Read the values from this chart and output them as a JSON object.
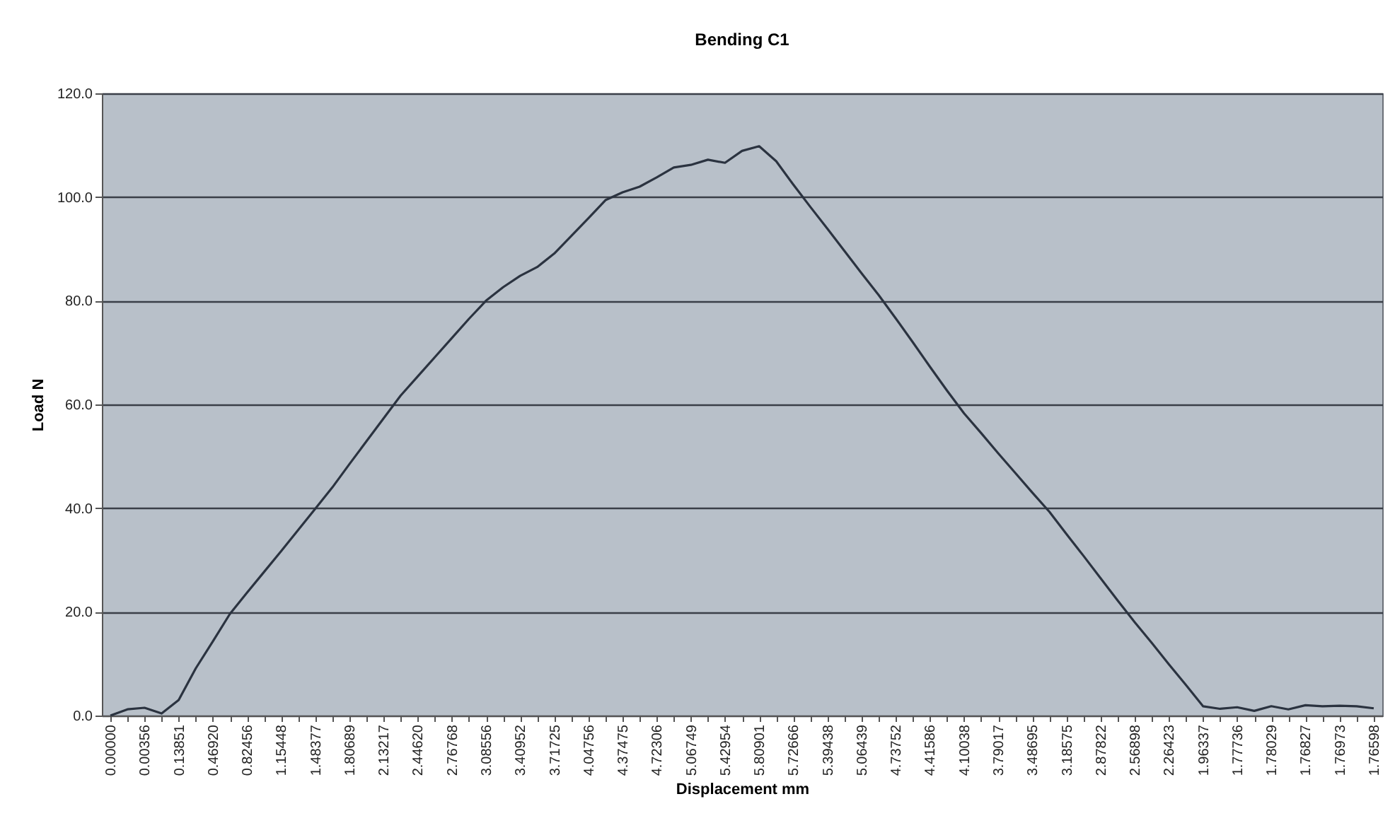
{
  "chart_data": {
    "type": "line",
    "title": "Bending C1",
    "xlabel": "Displacement mm",
    "ylabel": "Load N",
    "categories": [
      "0.00000",
      null,
      "0.00356",
      null,
      "0.13851",
      null,
      "0.46920",
      null,
      "0.82456",
      null,
      "1.15448",
      null,
      "1.48377",
      null,
      "1.80689",
      null,
      "2.13217",
      null,
      "2.44620",
      null,
      "2.76768",
      null,
      "3.08556",
      null,
      "3.40952",
      null,
      "3.71725",
      null,
      "4.04756",
      null,
      "4.37475",
      null,
      "4.72306",
      null,
      "5.06749",
      null,
      "5.42954",
      null,
      "5.80901",
      null,
      "5.72666",
      null,
      "5.39438",
      null,
      "5.06439",
      null,
      "4.73752",
      null,
      "4.41586",
      null,
      "4.10038",
      null,
      "3.79017",
      null,
      "3.48695",
      null,
      "3.18575",
      null,
      "2.87822",
      null,
      "2.56898",
      null,
      "2.26423",
      null,
      "1.96337",
      null,
      "1.77736",
      null,
      "1.78029",
      null,
      "1.76827",
      null,
      "1.76973",
      null,
      "1.76598"
    ],
    "series": [
      {
        "color": "#2b3340",
        "values": [
          0.0,
          1.2,
          1.5,
          0.4,
          3.0,
          9.1,
          14.3,
          19.6,
          23.7,
          27.7,
          31.7,
          35.8,
          39.9,
          44.0,
          48.5,
          52.9,
          57.3,
          61.7,
          65.4,
          69.1,
          72.8,
          76.5,
          80.0,
          82.6,
          84.8,
          86.5,
          89.1,
          92.5,
          95.9,
          99.4,
          100.9,
          102.0,
          103.8,
          105.7,
          106.2,
          107.2,
          106.6,
          108.9,
          109.8,
          106.9,
          102.4,
          98.1,
          93.9,
          89.6,
          85.3,
          81.1,
          76.6,
          72.0,
          67.3,
          62.7,
          58.3,
          54.5,
          50.6,
          46.8,
          43.0,
          39.3,
          35.0,
          30.8,
          26.5,
          22.2,
          18.0,
          14.0,
          9.9,
          5.9,
          1.8,
          1.3,
          1.6,
          0.9,
          1.8,
          1.2,
          2.0,
          1.8,
          1.9,
          1.8,
          1.4
        ]
      }
    ],
    "ylim": [
      0,
      120
    ],
    "yticks": [
      {
        "value": 0,
        "label": "0.0"
      },
      {
        "value": 20,
        "label": "20.0"
      },
      {
        "value": 40,
        "label": "40.0"
      },
      {
        "value": 60,
        "label": "60.0"
      },
      {
        "value": 80,
        "label": "80.0"
      },
      {
        "value": 100,
        "label": "100.0"
      },
      {
        "value": 120,
        "label": "120.0"
      }
    ],
    "grid": "y",
    "legend": false,
    "marker": "none",
    "line_style": "solid"
  }
}
